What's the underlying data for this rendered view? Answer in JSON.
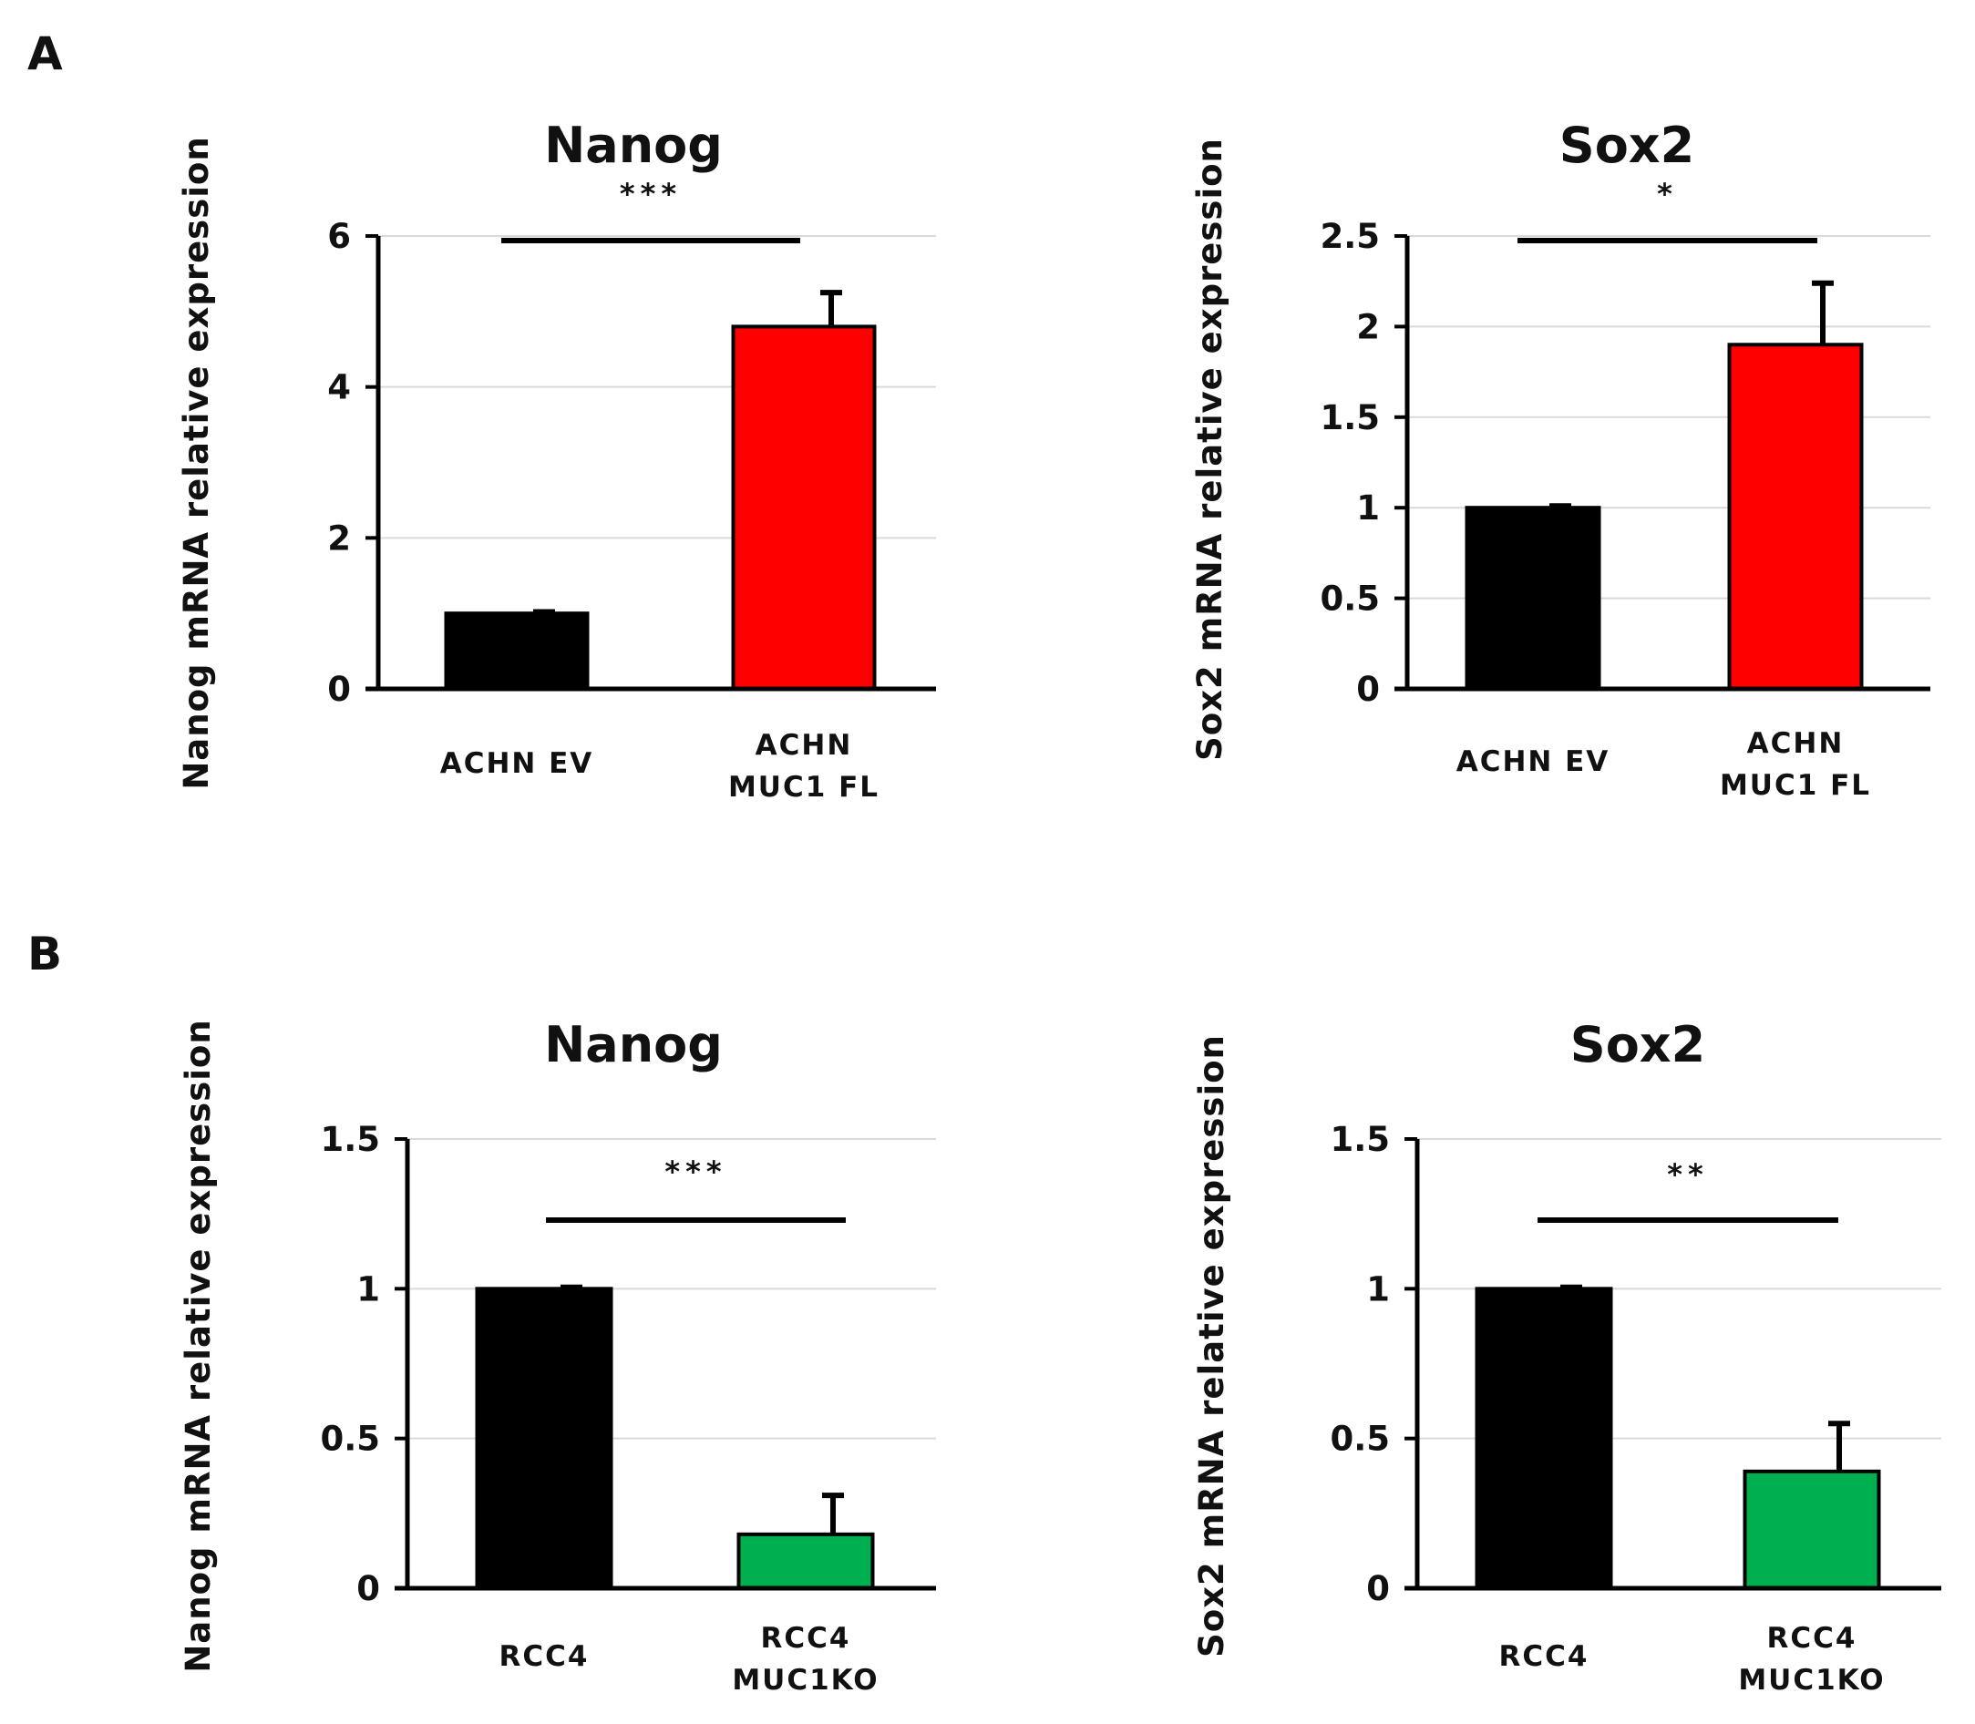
{
  "panels": [
    {
      "label": "A"
    },
    {
      "label": "B"
    }
  ],
  "chart_data": [
    {
      "type": "bar",
      "panel": "A",
      "title": "Nanog",
      "ylabel": "Nanog mRNA relative expression",
      "ylim": [
        0,
        6
      ],
      "yticks": [
        0,
        2,
        4,
        6
      ],
      "ytick_labels": [
        "0",
        "2",
        "4",
        "6"
      ],
      "grid": true,
      "categories": [
        [
          "ACHN EV"
        ],
        [
          "ACHN",
          "MUC1 FL"
        ]
      ],
      "values": [
        1.0,
        4.8
      ],
      "errors": [
        0.02,
        0.45
      ],
      "colors": [
        "#000000",
        "#ff0000"
      ],
      "significance": "***"
    },
    {
      "type": "bar",
      "panel": "A",
      "title": "Sox2",
      "ylabel": "Sox2 mRNA relative expression",
      "ylim": [
        0,
        2.5
      ],
      "yticks": [
        0,
        0.5,
        1,
        1.5,
        2,
        2.5
      ],
      "ytick_labels": [
        "0",
        "0.5",
        "1",
        "1.5",
        "2",
        "2.5"
      ],
      "grid": true,
      "categories": [
        [
          "ACHN EV"
        ],
        [
          "ACHN",
          "MUC1 FL"
        ]
      ],
      "values": [
        1.0,
        1.9
      ],
      "errors": [
        0.01,
        0.34
      ],
      "colors": [
        "#000000",
        "#ff0000"
      ],
      "significance": "*"
    },
    {
      "type": "bar",
      "panel": "B",
      "title": "Nanog",
      "ylabel": "Nanog mRNA relative expression",
      "ylim": [
        0,
        1.5
      ],
      "yticks": [
        0,
        0.5,
        1,
        1.5
      ],
      "ytick_labels": [
        "0",
        "0.5",
        "1",
        "1.5"
      ],
      "grid": true,
      "categories": [
        [
          "RCC4"
        ],
        [
          "RCC4",
          "MUC1KO"
        ]
      ],
      "values": [
        1.0,
        0.18
      ],
      "errors": [
        0.005,
        0.13
      ],
      "colors": [
        "#000000",
        "#00b050"
      ],
      "significance": "***"
    },
    {
      "type": "bar",
      "panel": "B",
      "title": "Sox2",
      "ylabel": "Sox2 mRNA relative expression",
      "ylim": [
        0,
        1.5
      ],
      "yticks": [
        0,
        0.5,
        1,
        1.5
      ],
      "ytick_labels": [
        "0",
        "0.5",
        "1",
        "1.5"
      ],
      "grid": true,
      "categories": [
        [
          "RCC4"
        ],
        [
          "RCC4",
          "MUC1KO"
        ]
      ],
      "values": [
        1.0,
        0.39
      ],
      "errors": [
        0.005,
        0.16
      ],
      "colors": [
        "#000000",
        "#00b050"
      ],
      "significance": "**"
    }
  ]
}
